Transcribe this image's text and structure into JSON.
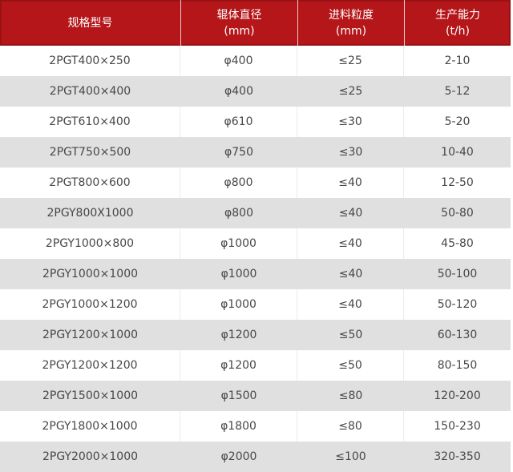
{
  "colors": {
    "page_bg": "#ffffff",
    "header_bg": "#b41619",
    "header_border": "#9a1114",
    "header_divider": "#ecc9c9",
    "header_text": "#ffffff",
    "row_bg": "#ffffff",
    "row_alt_bg": "#e0e0e0",
    "cell_divider": "#ebebeb",
    "body_text": "#474747"
  },
  "chart_data": {
    "type": "table",
    "title": "",
    "legend": [],
    "columns": [
      {
        "label": "规格型号",
        "unit": ""
      },
      {
        "label": "辊体直径",
        "unit": "(mm)"
      },
      {
        "label": "进料粒度",
        "unit": "(mm)"
      },
      {
        "label": "生产能力",
        "unit": "(t/h)"
      }
    ],
    "rows": [
      [
        "2PGT400×250",
        "φ400",
        "≤25",
        "2-10"
      ],
      [
        "2PGT400×400",
        "φ400",
        "≤25",
        "5-12"
      ],
      [
        "2PGT610×400",
        "φ610",
        "≤30",
        "5-20"
      ],
      [
        "2PGT750×500",
        "φ750",
        "≤30",
        "10-40"
      ],
      [
        "2PGT800×600",
        "φ800",
        "≤40",
        "12-50"
      ],
      [
        "2PGY800X1000",
        "φ800",
        "≤40",
        "50-80"
      ],
      [
        "2PGY1000×800",
        "φ1000",
        "≤40",
        "45-80"
      ],
      [
        "2PGY1000×1000",
        "φ1000",
        "≤40",
        "50-100"
      ],
      [
        "2PGY1000×1200",
        "φ1000",
        "≤40",
        "50-120"
      ],
      [
        "2PGY1200×1000",
        "φ1200",
        "≤50",
        "60-130"
      ],
      [
        "2PGY1200×1200",
        "φ1200",
        "≤50",
        "80-150"
      ],
      [
        "2PGY1500×1000",
        "φ1500",
        "≤80",
        "120-200"
      ],
      [
        "2PGY1800×1000",
        "φ1800",
        "≤80",
        "150-230"
      ],
      [
        "2PGY2000×1000",
        "φ2000",
        "≤100",
        "320-350"
      ]
    ]
  }
}
